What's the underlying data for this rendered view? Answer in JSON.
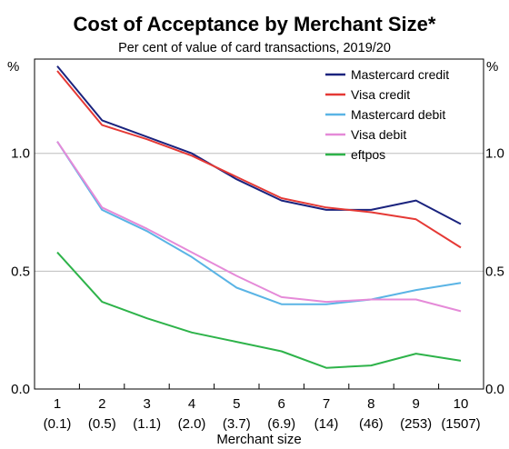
{
  "colors": {
    "mastercard_credit": "#1a237e",
    "visa_credit": "#e53935",
    "mastercard_debit": "#5ab4e5",
    "visa_debit": "#e58ad8",
    "eftpos": "#2eb34a",
    "grid": "#bdbdbd"
  },
  "chart_data": {
    "type": "line",
    "title": "Cost of Acceptance by Merchant Size*",
    "subtitle": "Per cent of value of card transactions, 2019/20",
    "ylabel_left": "%",
    "ylabel_right": "%",
    "xlabel": "Merchant size",
    "ylim": [
      0,
      1.4
    ],
    "y_ticks": [
      "0.0",
      "0.5",
      "1.0"
    ],
    "x": [
      1,
      2,
      3,
      4,
      5,
      6,
      7,
      8,
      9,
      10
    ],
    "x_tick_labels": [
      "1",
      "2",
      "3",
      "4",
      "5",
      "6",
      "7",
      "8",
      "9",
      "10"
    ],
    "x_tick_sublabels": [
      "(0.1)",
      "(0.5)",
      "(1.1)",
      "(2.0)",
      "(3.7)",
      "(6.9)",
      "(14)",
      "(46)",
      "(253)",
      "(1507)"
    ],
    "grid": true,
    "legend_position": "top-right",
    "series": [
      {
        "name": "Mastercard credit",
        "color_key": "mastercard_credit",
        "values": [
          1.37,
          1.14,
          1.07,
          1.0,
          0.89,
          0.8,
          0.76,
          0.76,
          0.8,
          0.7
        ]
      },
      {
        "name": "Visa credit",
        "color_key": "visa_credit",
        "values": [
          1.35,
          1.12,
          1.06,
          0.99,
          0.9,
          0.81,
          0.77,
          0.75,
          0.72,
          0.6
        ]
      },
      {
        "name": "Mastercard debit",
        "color_key": "mastercard_debit",
        "values": [
          1.05,
          0.76,
          0.67,
          0.56,
          0.43,
          0.36,
          0.36,
          0.38,
          0.42,
          0.45
        ]
      },
      {
        "name": "Visa debit",
        "color_key": "visa_debit",
        "values": [
          1.05,
          0.77,
          0.68,
          0.58,
          0.48,
          0.39,
          0.37,
          0.38,
          0.38,
          0.33
        ]
      },
      {
        "name": "eftpos",
        "color_key": "eftpos",
        "values": [
          0.58,
          0.37,
          0.3,
          0.24,
          0.2,
          0.16,
          0.09,
          0.1,
          0.15,
          0.12
        ]
      }
    ]
  }
}
